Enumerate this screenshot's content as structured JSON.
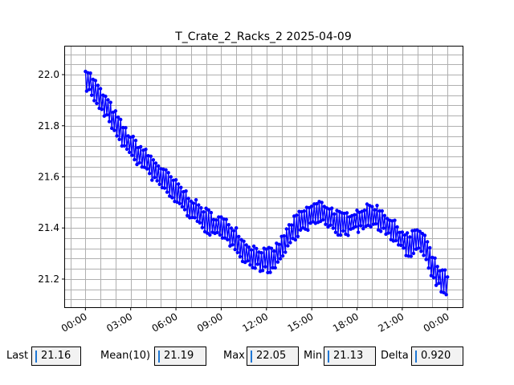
{
  "chart_data": {
    "type": "line",
    "title": "T_Crate_2_Racks_2 2025-04-09",
    "xlabel": "",
    "ylabel": "",
    "x_unit": "hours since 00:00 (date axis)",
    "xlim": [
      -1.35,
      25.0
    ],
    "ylim": [
      21.09,
      22.11
    ],
    "xticks": [
      {
        "value": 0,
        "label": "00:00"
      },
      {
        "value": 3,
        "label": "03:00"
      },
      {
        "value": 6,
        "label": "06:00"
      },
      {
        "value": 9,
        "label": "09:00"
      },
      {
        "value": 12,
        "label": "12:00"
      },
      {
        "value": 15,
        "label": "15:00"
      },
      {
        "value": 18,
        "label": "18:00"
      },
      {
        "value": 21,
        "label": "21:00"
      },
      {
        "value": 24,
        "label": "00:00"
      }
    ],
    "yticks": [
      {
        "value": 21.2,
        "label": "21.2"
      },
      {
        "value": 21.4,
        "label": "21.4"
      },
      {
        "value": 21.6,
        "label": "21.6"
      },
      {
        "value": 21.8,
        "label": "21.8"
      },
      {
        "value": 22.0,
        "label": "22.0"
      }
    ],
    "grid": true,
    "line_color": "#0000ff",
    "series": [
      {
        "name": "",
        "x": [
          0.0,
          0.5,
          1.0,
          1.5,
          2.0,
          2.5,
          3.0,
          3.5,
          4.0,
          4.5,
          5.0,
          5.5,
          6.0,
          6.5,
          7.0,
          7.5,
          8.0,
          8.5,
          9.0,
          9.5,
          10.0,
          10.5,
          11.0,
          11.5,
          12.0,
          12.5,
          13.0,
          13.5,
          14.0,
          14.5,
          15.0,
          15.5,
          16.0,
          16.5,
          17.0,
          17.5,
          18.0,
          18.5,
          19.0,
          19.5,
          20.0,
          20.5,
          21.0,
          21.5,
          22.0,
          22.5,
          23.0,
          23.5,
          24.0
        ],
        "values": [
          21.99,
          21.95,
          21.9,
          21.86,
          21.81,
          21.76,
          21.72,
          21.69,
          21.66,
          21.63,
          21.6,
          21.57,
          21.54,
          21.51,
          21.48,
          21.45,
          21.43,
          21.41,
          21.4,
          21.38,
          21.36,
          21.31,
          21.29,
          21.28,
          21.27,
          21.28,
          21.32,
          21.37,
          21.41,
          21.43,
          21.45,
          21.46,
          21.45,
          21.43,
          21.41,
          21.42,
          21.43,
          21.44,
          21.45,
          21.44,
          21.41,
          21.38,
          21.35,
          21.33,
          21.36,
          21.33,
          21.25,
          21.2,
          21.18
        ],
        "fluctuation": 0.05
      }
    ]
  },
  "stats": {
    "last_label": "Last",
    "last_value": "21.16",
    "mean_label": "Mean(10)",
    "mean_value": "21.19",
    "max_label": "Max",
    "max_value": "22.05",
    "min_label": "Min",
    "min_value": "21.13",
    "delta_label": "Delta",
    "delta_value": "0.920"
  }
}
